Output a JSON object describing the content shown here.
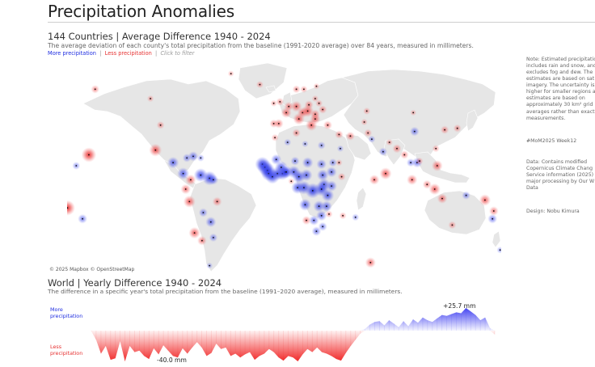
{
  "page": {
    "title": "Precipitation Anomalies"
  },
  "map": {
    "heading": "144 Countries | Average Difference 1940 - 2024",
    "subtitle": "The average deviation of each county's total precipitation from the baseline (1991-2020 average) over 84 years, measured in millimeters.",
    "filter_more": "More precipitation",
    "filter_less": "Less precipitation",
    "filter_sep": "|",
    "filter_hint": "Click to filter",
    "attribution": "© 2025 Mapbox © OpenStreetMap",
    "colors": {
      "more": "#1f2ee0",
      "less": "#e63232",
      "land": "#e6e6e6",
      "water": "#ffffff"
    }
  },
  "side_notes": {
    "note_lines": [
      "Note: Estimated precipitation",
      "includes rain and snow, and",
      "excludes fog and dew. The",
      "estimates are based on sat",
      "imagery. The uncertainty is",
      "higher for smaller regions a",
      "estimates are based on",
      "approximately 30 km² grid",
      "averages rather than exact",
      "measurements."
    ],
    "hashtag": "#MoM2025 Week12",
    "data_lines": [
      "Data: Contains modified",
      "Copernicus Climate Chang",
      "Service information (2025)",
      "major processing by Our W",
      "Data"
    ],
    "design": "Design: Nobu Kimura"
  },
  "world": {
    "heading": "World | Yearly Difference 1940 - 2024",
    "subtitle": "The difference in a specific year's total precipitation from the baseline (1991–2020 average), measured in millimeters.",
    "more_label_1": "More",
    "more_label_2": "precipitation",
    "less_label_1": "Less",
    "less_label_2": "precipitation",
    "max_label": "+25.7 mm",
    "min_label": "-40.0 mm",
    "colors": {
      "more": "#3b3bf0",
      "less": "#f01e1e"
    }
  },
  "chart_data": {
    "type": "area",
    "title": "World | Yearly Difference 1940 - 2024",
    "xlabel": "",
    "ylabel": "",
    "x": [
      1940,
      1941,
      1942,
      1943,
      1944,
      1945,
      1946,
      1947,
      1948,
      1949,
      1950,
      1951,
      1952,
      1953,
      1954,
      1955,
      1956,
      1957,
      1958,
      1959,
      1960,
      1961,
      1962,
      1963,
      1964,
      1965,
      1966,
      1967,
      1968,
      1969,
      1970,
      1971,
      1972,
      1973,
      1974,
      1975,
      1976,
      1977,
      1978,
      1979,
      1980,
      1981,
      1982,
      1983,
      1984,
      1985,
      1986,
      1987,
      1988,
      1989,
      1990,
      1991,
      1992,
      1993,
      1994,
      1995,
      1996,
      1997,
      1998,
      1999,
      2000,
      2001,
      2002,
      2003,
      2004,
      2005,
      2006,
      2007,
      2008,
      2009,
      2010,
      2011,
      2012,
      2013,
      2014,
      2015,
      2016,
      2017,
      2018,
      2019,
      2020,
      2021,
      2022,
      2023,
      2024
    ],
    "values": [
      -1,
      -12,
      -30,
      -20,
      -38,
      -36,
      -14,
      -40,
      -20,
      -28,
      -26,
      -33,
      -37,
      -23,
      -31,
      -19,
      -26,
      -33,
      -35,
      -23,
      -30,
      -22,
      -15,
      -22,
      -33,
      -29,
      -17,
      -24,
      -22,
      -33,
      -30,
      -35,
      -31,
      -28,
      -38,
      -33,
      -30,
      -24,
      -28,
      -35,
      -39,
      -33,
      -35,
      -40,
      -31,
      -24,
      -28,
      -22,
      -28,
      -30,
      -33,
      -37,
      -39,
      -29,
      -20,
      -12,
      -4,
      2,
      7,
      10,
      11,
      6,
      12,
      8,
      4,
      11,
      5,
      13,
      9,
      15,
      12,
      10,
      14,
      18,
      17,
      19,
      21,
      20,
      26,
      22,
      18,
      12,
      15,
      3,
      -5
    ],
    "ylim": [
      -40,
      26
    ]
  },
  "map_bubbles": [
    {
      "lon": -155,
      "lat": 20,
      "v": -38
    },
    {
      "lon": -150,
      "lat": 62,
      "v": -14
    },
    {
      "lon": -106,
      "lat": 56,
      "v": -8
    },
    {
      "lon": -98,
      "lat": 39,
      "v": -12
    },
    {
      "lon": -102,
      "lat": 23,
      "v": -30
    },
    {
      "lon": -88,
      "lat": 15,
      "v": 26
    },
    {
      "lon": -77,
      "lat": 18,
      "v": 15
    },
    {
      "lon": -72,
      "lat": 19,
      "v": 20
    },
    {
      "lon": -66,
      "lat": 18,
      "v": 10
    },
    {
      "lon": -80,
      "lat": 8,
      "v": 28
    },
    {
      "lon": -74,
      "lat": 4,
      "v": -22
    },
    {
      "lon": -66,
      "lat": 7,
      "v": 34
    },
    {
      "lon": -59,
      "lat": 5,
      "v": 36
    },
    {
      "lon": -56,
      "lat": 4,
      "v": 20
    },
    {
      "lon": -78,
      "lat": -2,
      "v": -20
    },
    {
      "lon": -75,
      "lat": -10,
      "v": -28
    },
    {
      "lon": -53,
      "lat": -10,
      "v": -18
    },
    {
      "lon": -64,
      "lat": -17,
      "v": 16
    },
    {
      "lon": -58,
      "lat": -23,
      "v": 22
    },
    {
      "lon": -71,
      "lat": -30,
      "v": -26
    },
    {
      "lon": -65,
      "lat": -35,
      "v": -18
    },
    {
      "lon": -56,
      "lat": -33,
      "v": 14
    },
    {
      "lon": -59,
      "lat": -51,
      "v": 6
    },
    {
      "lon": -165,
      "lat": 13,
      "v": 12
    },
    {
      "lon": -178,
      "lat": -17,
      "v": 16
    },
    {
      "lon": -172,
      "lat": -14,
      "v": -40
    },
    {
      "lon": -160,
      "lat": -21,
      "v": 18
    },
    {
      "lon": -42,
      "lat": 72,
      "v": -6
    },
    {
      "lon": -19,
      "lat": 65,
      "v": -10
    },
    {
      "lon": -8,
      "lat": 53,
      "v": -8
    },
    {
      "lon": -3,
      "lat": 54,
      "v": -12
    },
    {
      "lon": -8,
      "lat": 40,
      "v": -14
    },
    {
      "lon": -4,
      "lat": 40,
      "v": -18
    },
    {
      "lon": 2,
      "lat": 47,
      "v": -22
    },
    {
      "lon": 4,
      "lat": 51,
      "v": -18
    },
    {
      "lon": 10,
      "lat": 51,
      "v": -24
    },
    {
      "lon": 12,
      "lat": 43,
      "v": -26
    },
    {
      "lon": 15,
      "lat": 47,
      "v": -22
    },
    {
      "lon": 19,
      "lat": 48,
      "v": -28
    },
    {
      "lon": 20,
      "lat": 52,
      "v": -16
    },
    {
      "lon": 22,
      "lat": 39,
      "v": -26
    },
    {
      "lon": 25,
      "lat": 43,
      "v": -22
    },
    {
      "lon": 25,
      "lat": 46,
      "v": -18
    },
    {
      "lon": 31,
      "lat": 49,
      "v": -14
    },
    {
      "lon": 28,
      "lat": 53,
      "v": -10
    },
    {
      "lon": 25,
      "lat": 56,
      "v": -8
    },
    {
      "lon": 10,
      "lat": 62,
      "v": -12
    },
    {
      "lon": 16,
      "lat": 62,
      "v": -10
    },
    {
      "lon": 26,
      "lat": 64,
      "v": -6
    },
    {
      "lon": 35,
      "lat": 39,
      "v": -16
    },
    {
      "lon": 44,
      "lat": 33,
      "v": -14
    },
    {
      "lon": 53,
      "lat": 32,
      "v": -16
    },
    {
      "lon": 45,
      "lat": 24,
      "v": 8
    },
    {
      "lon": 66,
      "lat": 48,
      "v": -10
    },
    {
      "lon": 64,
      "lat": 41,
      "v": -8
    },
    {
      "lon": 67,
      "lat": 34,
      "v": -12
    },
    {
      "lon": 70,
      "lat": 30,
      "v": 10
    },
    {
      "lon": 79,
      "lat": 22,
      "v": 14
    },
    {
      "lon": 84,
      "lat": 28,
      "v": -8
    },
    {
      "lon": 90,
      "lat": 24,
      "v": -16
    },
    {
      "lon": 104,
      "lat": 35,
      "v": 18
    },
    {
      "lon": 103,
      "lat": 47,
      "v": -6
    },
    {
      "lon": 128,
      "lat": 36,
      "v": -14
    },
    {
      "lon": 138,
      "lat": 37,
      "v": -12
    },
    {
      "lon": 96,
      "lat": 20,
      "v": -14
    },
    {
      "lon": 101,
      "lat": 15,
      "v": 14
    },
    {
      "lon": 106,
      "lat": 15,
      "v": 20
    },
    {
      "lon": 108,
      "lat": 16,
      "v": -10
    },
    {
      "lon": 122,
      "lat": 13,
      "v": -24
    },
    {
      "lon": 121,
      "lat": 24,
      "v": -10
    },
    {
      "lon": 102,
      "lat": 4,
      "v": -22
    },
    {
      "lon": 114,
      "lat": 1,
      "v": -16
    },
    {
      "lon": 120,
      "lat": -2,
      "v": -26
    },
    {
      "lon": 126,
      "lat": -8,
      "v": -20
    },
    {
      "lon": 81,
      "lat": 8,
      "v": -28
    },
    {
      "lon": 145,
      "lat": -6,
      "v": 14
    },
    {
      "lon": 160,
      "lat": -9,
      "v": -26
    },
    {
      "lon": 167,
      "lat": -16,
      "v": -18
    },
    {
      "lon": 178,
      "lat": -18,
      "v": 22
    },
    {
      "lon": 166,
      "lat": -21,
      "v": 18
    },
    {
      "lon": 134,
      "lat": -25,
      "v": -12
    },
    {
      "lon": 172,
      "lat": -41,
      "v": 8
    },
    {
      "lon": 57,
      "lat": -20,
      "v": 10
    },
    {
      "lon": 47,
      "lat": -19,
      "v": -10
    },
    {
      "lon": 72,
      "lat": 4,
      "v": -20
    },
    {
      "lon": 69,
      "lat": -49,
      "v": -22
    },
    {
      "lon": 6,
      "lat": 3,
      "v": -6
    },
    {
      "lon": -17,
      "lat": 14,
      "v": 38
    },
    {
      "lon": -15,
      "lat": 12,
      "v": 40
    },
    {
      "lon": -13,
      "lat": 10,
      "v": 40
    },
    {
      "lon": -12,
      "lat": 8,
      "v": 38
    },
    {
      "lon": -9,
      "lat": 6,
      "v": 36
    },
    {
      "lon": -5,
      "lat": 8,
      "v": 34
    },
    {
      "lon": -1,
      "lat": 8,
      "v": 32
    },
    {
      "lon": 1,
      "lat": 9,
      "v": 30
    },
    {
      "lon": 2,
      "lat": 9,
      "v": 28
    },
    {
      "lon": -2,
      "lat": 12,
      "v": 30
    },
    {
      "lon": -6,
      "lat": 17,
      "v": 22
    },
    {
      "lon": 8,
      "lat": 9,
      "v": 30
    },
    {
      "lon": 9,
      "lat": 16,
      "v": 16
    },
    {
      "lon": 12,
      "lat": 6,
      "v": 32
    },
    {
      "lon": 18,
      "lat": 7,
      "v": 28
    },
    {
      "lon": 19,
      "lat": 15,
      "v": 24
    },
    {
      "lon": 30,
      "lat": 14,
      "v": 20
    },
    {
      "lon": 31,
      "lat": 7,
      "v": 26
    },
    {
      "lon": 38,
      "lat": 9,
      "v": 22
    },
    {
      "lon": 39,
      "lat": 15,
      "v": 14
    },
    {
      "lon": 46,
      "lat": 6,
      "v": -12
    },
    {
      "lon": 38,
      "lat": 0,
      "v": 24
    },
    {
      "lon": 32,
      "lat": 1,
      "v": 28
    },
    {
      "lon": 30,
      "lat": -2,
      "v": 36
    },
    {
      "lon": 23,
      "lat": -3,
      "v": 40
    },
    {
      "lon": 16,
      "lat": -1,
      "v": 34
    },
    {
      "lon": 11,
      "lat": -1,
      "v": 30
    },
    {
      "lon": 35,
      "lat": -6,
      "v": 30
    },
    {
      "lon": 17,
      "lat": -12,
      "v": 28
    },
    {
      "lon": 28,
      "lat": -13,
      "v": 26
    },
    {
      "lon": 34,
      "lat": -13,
      "v": 24
    },
    {
      "lon": 30,
      "lat": -19,
      "v": 22
    },
    {
      "lon": 36,
      "lat": -18,
      "v": -10
    },
    {
      "lon": 18,
      "lat": -22,
      "v": -16
    },
    {
      "lon": 24,
      "lat": -22,
      "v": 20
    },
    {
      "lon": 26,
      "lat": -29,
      "v": 18
    },
    {
      "lon": 31,
      "lat": -26,
      "v": 16
    },
    {
      "lon": 10,
      "lat": 34,
      "v": -14
    },
    {
      "lon": 3,
      "lat": 28,
      "v": 10
    },
    {
      "lon": -7,
      "lat": 31,
      "v": -10
    },
    {
      "lon": 17,
      "lat": 27,
      "v": 8
    },
    {
      "lon": 30,
      "lat": 26,
      "v": 12
    },
    {
      "lon": 44,
      "lat": 15,
      "v": -8
    }
  ]
}
